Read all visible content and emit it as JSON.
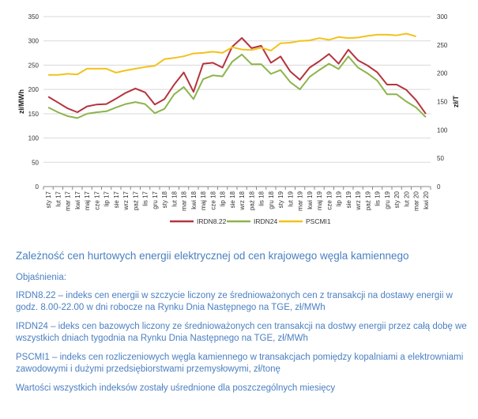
{
  "chart_data": {
    "type": "line",
    "categories": [
      "sty 17",
      "lut 17",
      "mar 17",
      "kwi 17",
      "maj 17",
      "cze 17",
      "lip 17",
      "sie 17",
      "wrz 17",
      "paź 17",
      "lis 17",
      "gru 17",
      "sty 18",
      "lut 18",
      "mar 18",
      "kwi 18",
      "maj 18",
      "cze 18",
      "lip 18",
      "sie 18",
      "wrz 18",
      "paź 18",
      "lis 18",
      "gru 18",
      "sty 19",
      "lut 19",
      "mar 19",
      "kwi 19",
      "maj 19",
      "cze 19",
      "lip 19",
      "sie 19",
      "wrz 19",
      "paź 19",
      "lis 19",
      "gru 19",
      "sty 20",
      "lut 20",
      "mar 20",
      "kwi 20"
    ],
    "yleft": {
      "label": "zł/MWh",
      "min": 0,
      "max": 350,
      "ticks": [
        0,
        50,
        100,
        150,
        200,
        250,
        300,
        350
      ]
    },
    "yright": {
      "label": "zł/T",
      "min": 0,
      "max": 300,
      "ticks": [
        0,
        50,
        100,
        150,
        200,
        250,
        300
      ]
    },
    "grid": true,
    "legend_position": "bottom",
    "series": [
      {
        "name": "IRDN8.22",
        "axis": "left",
        "color": "#b5333f",
        "values": [
          185,
          173,
          161,
          153,
          165,
          169,
          170,
          181,
          193,
          202,
          194,
          169,
          180,
          210,
          235,
          195,
          253,
          255,
          245,
          288,
          306,
          285,
          290,
          255,
          268,
          237,
          220,
          245,
          258,
          273,
          253,
          282,
          260,
          249,
          235,
          210,
          210,
          199,
          178,
          150
        ]
      },
      {
        "name": "IRDN24",
        "axis": "left",
        "color": "#8db44b",
        "values": [
          163,
          153,
          145,
          141,
          150,
          153,
          155,
          163,
          170,
          174,
          170,
          151,
          160,
          190,
          205,
          180,
          221,
          229,
          227,
          257,
          272,
          252,
          252,
          232,
          240,
          215,
          200,
          226,
          240,
          253,
          242,
          268,
          245,
          233,
          218,
          190,
          190,
          175,
          163,
          143
        ]
      },
      {
        "name": "PSCMI1",
        "axis": "right",
        "color": "#f2c21b",
        "values": [
          197,
          197,
          199,
          198,
          208,
          208,
          208,
          201,
          205,
          208,
          211,
          213,
          225,
          227,
          230,
          235,
          236,
          238,
          236,
          246,
          242,
          241,
          245,
          240,
          253,
          254,
          257,
          258,
          262,
          259,
          264,
          262,
          263,
          266,
          268,
          268,
          267,
          270,
          265,
          null
        ]
      }
    ]
  },
  "caption": {
    "title": "Zależność cen hurtowych energii elektrycznej od cen krajowego węgla kamiennego",
    "explanations_heading": "Objaśnienia:",
    "paragraphs": [
      "IRDN8.22 – indeks cen energii w szczycie liczony ze średnioważonych cen z transakcji na dostawy energii w godz. 8.00-22.00 w dni robocze na Rynku Dnia Następnego na TGE, zł/MWh",
      "IRDN24 – ideks cen bazowych liczony ze średnioważonych cen transakcji na dostwy energii przez całą dobę we wszystkich dniach tygodnia na Rynku Dnia Następnego na TGE, zł/MWh",
      "PSCMI1 – indeks cen rozliczeniowych węgla kamiennego w transakcjach pomiędzy kopalniami a elektrowniami zawodowymi i dużymi przedsiębiorstwami przemysłowymi, zł/tonę",
      "Wartości wszystkich indeksów zostały uśrednione dla poszczególnych miesięcy"
    ]
  }
}
